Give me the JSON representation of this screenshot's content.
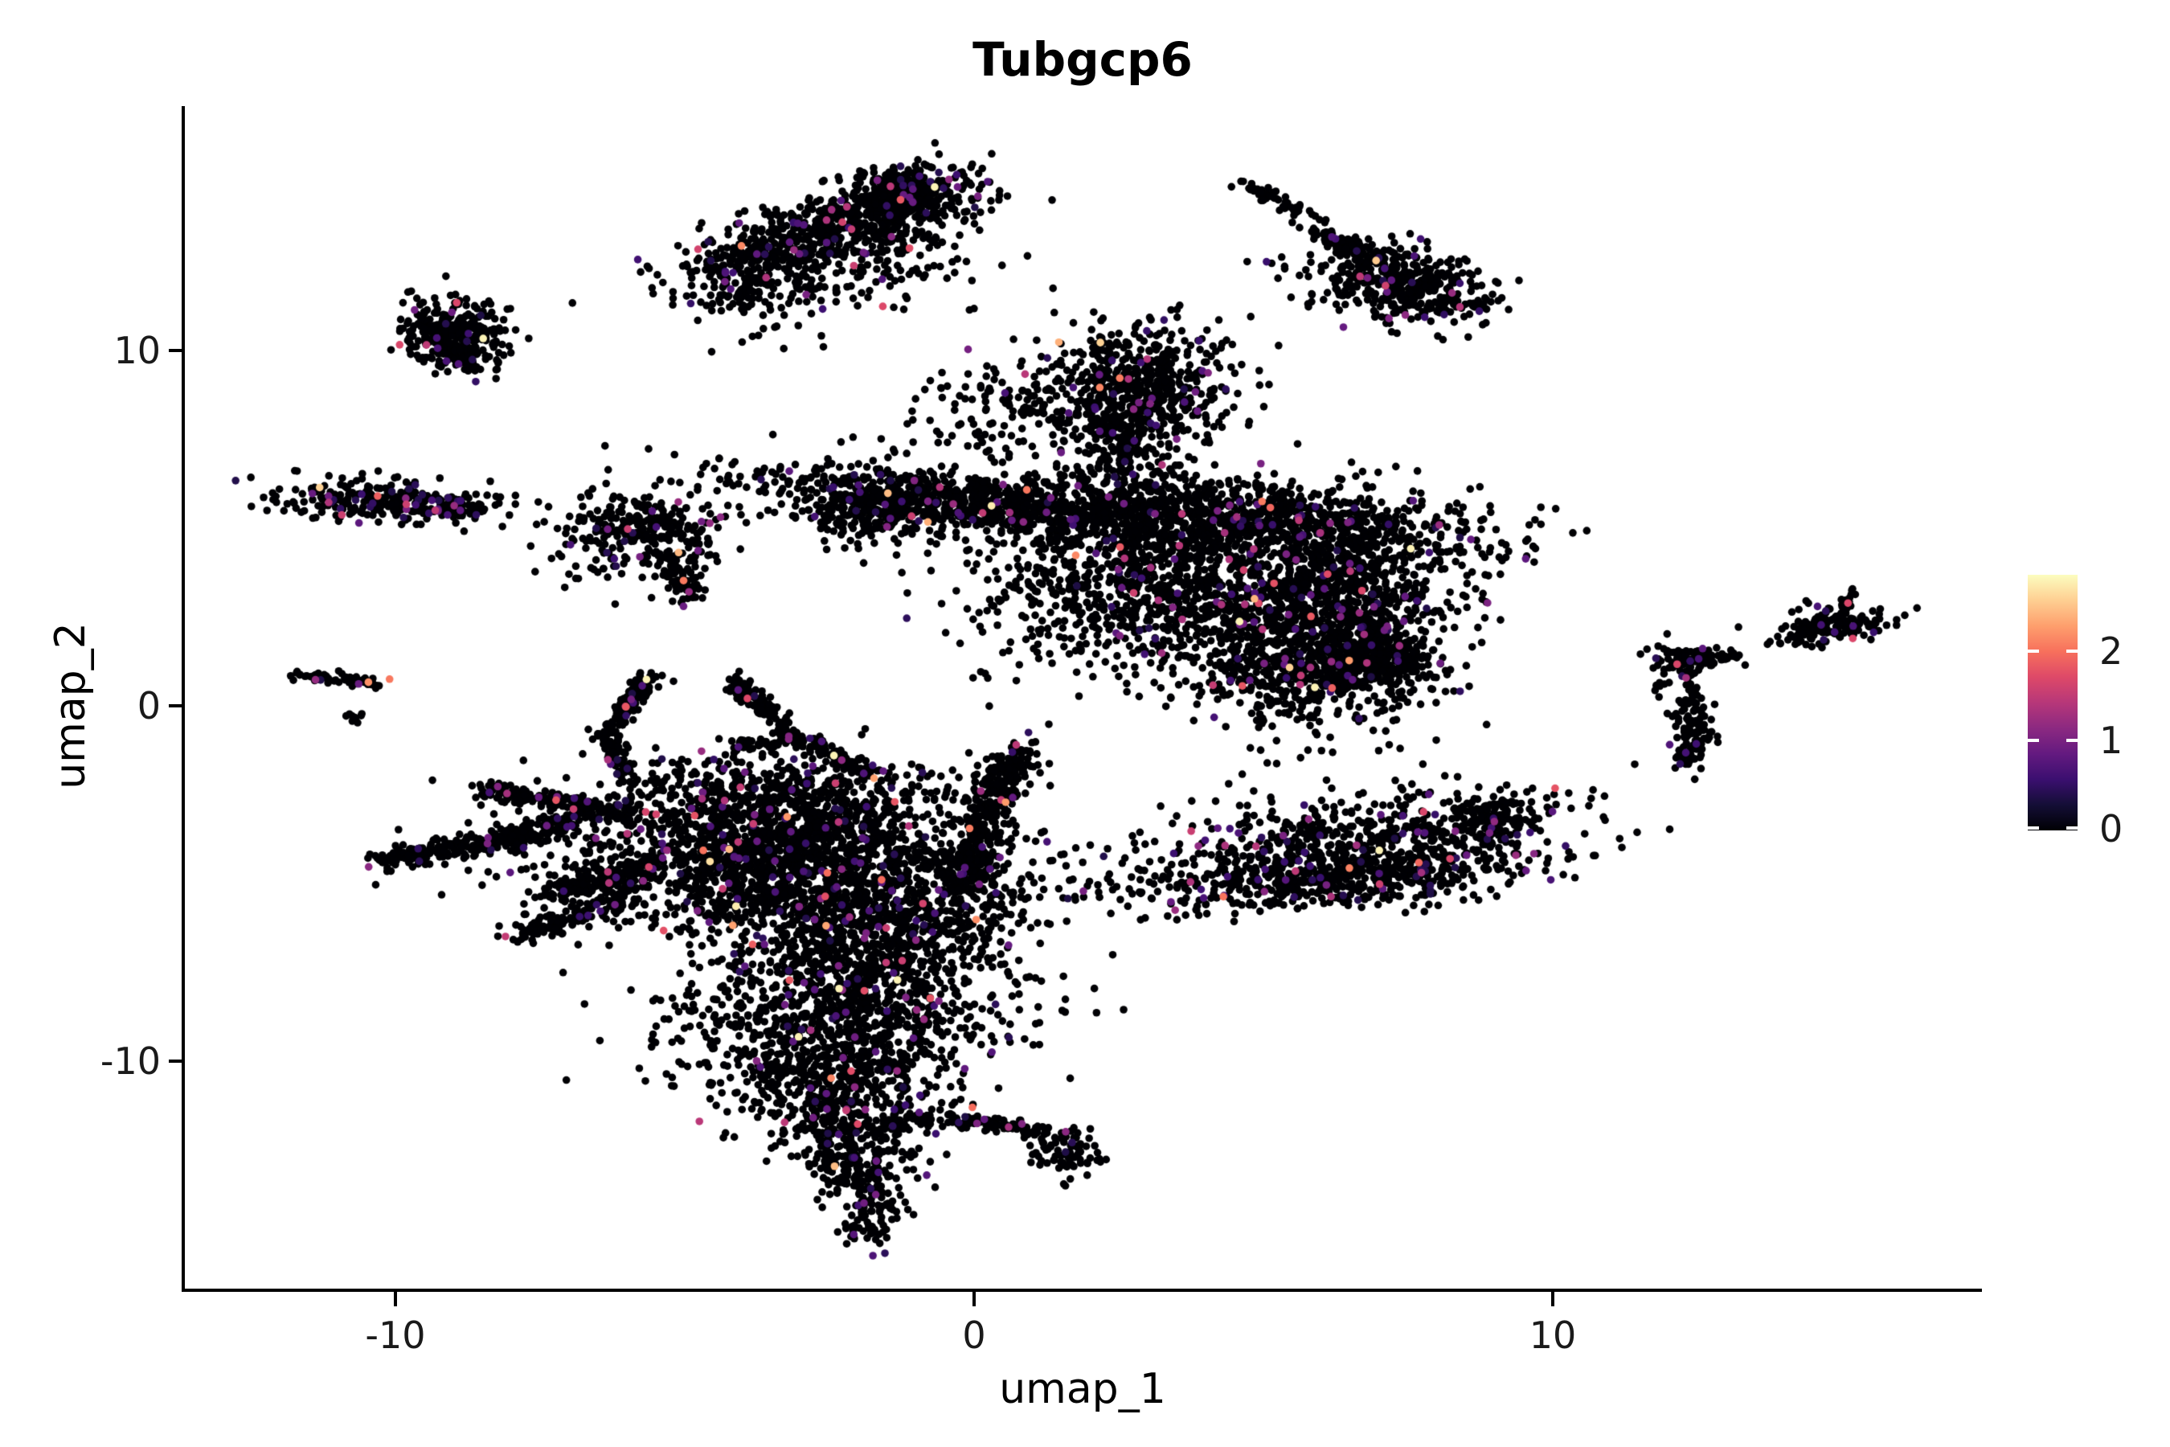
{
  "title": {
    "text": "Tubgcp6"
  },
  "axes": {
    "x": {
      "label": "umap_1",
      "ticks": [
        "-10",
        "0",
        "10"
      ],
      "tick_values": [
        -10,
        0,
        10
      ]
    },
    "y": {
      "label": "umap_2",
      "ticks": [
        "-10",
        "0",
        "10"
      ],
      "tick_values": [
        -10,
        0,
        10
      ]
    }
  },
  "colorbar": {
    "tick_labels": [
      "2",
      "1",
      "0"
    ],
    "tick_values": [
      2,
      1,
      0
    ],
    "vmin": 0,
    "vmax": 2.86,
    "colormap": "magma",
    "gradient_stops": [
      "#000004",
      "#140e36",
      "#3b0f70",
      "#641a80",
      "#8c2981",
      "#b73779",
      "#de4968",
      "#f7705c",
      "#fe9f6d",
      "#fecf92",
      "#fcfdbf"
    ]
  },
  "chart_data": {
    "type": "scatter",
    "title": "Tubgcp6",
    "xlabel": "umap_1",
    "ylabel": "umap_2",
    "xlim": [
      -13.7,
      17.4
    ],
    "ylim": [
      -16.4,
      16.9
    ],
    "x_ticks": [
      -10,
      0,
      10
    ],
    "y_ticks": [
      -10,
      0,
      10
    ],
    "grid": false,
    "legend_position": "right-colorbar",
    "point_color_zero": "#000004",
    "point_radius_px": 4.8,
    "value_range": [
      0,
      2.86
    ],
    "seed": 42,
    "clusters": [
      {
        "kind": "blob",
        "x": -2.6,
        "y": 13.3,
        "rx": 1.45,
        "ry": 0.5,
        "rot": 28,
        "n": 650,
        "cf": 0.06
      },
      {
        "kind": "blob",
        "x": -1.25,
        "y": 14.35,
        "rx": 0.55,
        "ry": 0.4,
        "rot": 20,
        "n": 300,
        "cf": 0.05
      },
      {
        "kind": "blob",
        "x": -2.5,
        "y": 12.2,
        "rx": 1.3,
        "ry": 0.75,
        "rot": 15,
        "n": 200,
        "cf": 0.08
      },
      {
        "kind": "line",
        "pts": [
          [
            -4.25,
            11.2
          ],
          [
            -3.55,
            12.4
          ]
        ],
        "w": 0.25,
        "n": 45,
        "cf": 0.05
      },
      {
        "kind": "blob",
        "x": 5.25,
        "y": 14.2,
        "rx": 0.42,
        "ry": 0.1,
        "rot": -35,
        "n": 50,
        "cf": 0.02
      },
      {
        "kind": "line",
        "pts": [
          [
            5.85,
            13.4
          ],
          [
            7.2,
            12.35
          ]
        ],
        "w": 0.12,
        "n": 120,
        "cf": 0.03
      },
      {
        "kind": "blob",
        "x": 7.55,
        "y": 11.85,
        "rx": 0.75,
        "ry": 0.45,
        "rot": -28,
        "n": 330,
        "cf": 0.04
      },
      {
        "kind": "blob",
        "x": 6.8,
        "y": 12.0,
        "rx": 0.9,
        "ry": 0.55,
        "rot": -25,
        "n": 90,
        "cf": 0.05
      },
      {
        "kind": "blob",
        "x": -9.05,
        "y": 10.6,
        "rx": 0.42,
        "ry": 0.5,
        "rot": 0,
        "n": 230,
        "cf": 0.05
      },
      {
        "kind": "blob",
        "x": -8.7,
        "y": 9.9,
        "rx": 0.3,
        "ry": 0.32,
        "rot": 0,
        "n": 90,
        "cf": 0.05
      },
      {
        "kind": "blob",
        "x": -10.05,
        "y": 5.75,
        "rx": 0.95,
        "ry": 0.3,
        "rot": -6,
        "n": 280,
        "cf": 0.1
      },
      {
        "kind": "line",
        "pts": [
          [
            -9.2,
            5.6
          ],
          [
            -8.55,
            5.5
          ]
        ],
        "w": 0.08,
        "n": 40,
        "cf": 0.04
      },
      {
        "kind": "blob",
        "x": -5.7,
        "y": 4.85,
        "rx": 0.75,
        "ry": 0.6,
        "rot": 0,
        "n": 300,
        "cf": 0.06
      },
      {
        "kind": "line",
        "pts": [
          [
            -5.3,
            4.0
          ],
          [
            -4.85,
            3.0
          ]
        ],
        "w": 0.16,
        "n": 70,
        "cf": 0.06
      },
      {
        "kind": "line",
        "pts": [
          [
            -11.75,
            0.85
          ],
          [
            -10.3,
            0.65
          ]
        ],
        "w": 0.09,
        "n": 65,
        "cf": 0.08
      },
      {
        "kind": "blob",
        "x": -10.75,
        "y": -0.3,
        "rx": 0.12,
        "ry": 0.12,
        "rot": 0,
        "n": 9,
        "cf": 0.1
      },
      {
        "kind": "blob",
        "x": 2.85,
        "y": 8.95,
        "rx": 0.8,
        "ry": 0.95,
        "rot": 0,
        "n": 600,
        "cf": 0.06
      },
      {
        "kind": "blob",
        "x": 0.8,
        "y": 8.3,
        "rx": 1.0,
        "ry": 0.75,
        "rot": 20,
        "n": 150,
        "cf": 0.05
      },
      {
        "kind": "blob",
        "x": 2.5,
        "y": 7.2,
        "rx": 0.4,
        "ry": 0.85,
        "rot": 0,
        "n": 160,
        "cf": 0.05
      },
      {
        "kind": "blob",
        "x": -0.1,
        "y": 5.7,
        "rx": 1.95,
        "ry": 0.42,
        "rot": -10,
        "n": 850,
        "cf": 0.05
      },
      {
        "kind": "blob",
        "x": -1.75,
        "y": 5.45,
        "rx": 0.55,
        "ry": 0.5,
        "rot": 0,
        "n": 180,
        "cf": 0.06
      },
      {
        "kind": "blob",
        "x": 4.6,
        "y": 5.3,
        "rx": 2.1,
        "ry": 0.55,
        "rot": -7,
        "n": 850,
        "cf": 0.05
      },
      {
        "kind": "blob",
        "x": 6.2,
        "y": 2.6,
        "rx": 1.05,
        "ry": 1.6,
        "rot": -8,
        "n": 1250,
        "cf": 0.055
      },
      {
        "kind": "blob",
        "x": 3.6,
        "y": 3.1,
        "rx": 1.5,
        "ry": 1.25,
        "rot": 0,
        "n": 800,
        "cf": 0.055
      },
      {
        "kind": "blob",
        "x": 6.8,
        "y": 1.2,
        "rx": 0.55,
        "ry": 0.4,
        "rot": 0,
        "n": 280,
        "cf": 0.04
      },
      {
        "kind": "blob",
        "x": 1.9,
        "y": 3.9,
        "rx": 1.1,
        "ry": 1.0,
        "rot": 0,
        "n": 250,
        "cf": 0.06
      },
      {
        "kind": "blob",
        "x": 5.0,
        "y": 0.6,
        "rx": 0.8,
        "ry": 0.5,
        "rot": 0,
        "n": 90,
        "cf": 0.05
      },
      {
        "kind": "blob",
        "x": 12.3,
        "y": 1.3,
        "rx": 0.33,
        "ry": 0.22,
        "rot": 0,
        "n": 90,
        "cf": 0.06
      },
      {
        "kind": "blob",
        "x": 12.4,
        "y": -0.75,
        "rx": 0.2,
        "ry": 0.5,
        "rot": 0,
        "n": 100,
        "cf": 0.05
      },
      {
        "kind": "line",
        "pts": [
          [
            12.3,
            1.0
          ],
          [
            12.45,
            -0.2
          ]
        ],
        "w": 0.07,
        "n": 30,
        "cf": 0.03
      },
      {
        "kind": "line",
        "pts": [
          [
            12.6,
            1.2
          ],
          [
            13.25,
            1.5
          ]
        ],
        "w": 0.06,
        "n": 20,
        "cf": 0.05
      },
      {
        "kind": "blob",
        "x": 11.85,
        "y": 0.55,
        "rx": 0.12,
        "ry": 0.1,
        "rot": 0,
        "n": 6,
        "cf": 0
      },
      {
        "kind": "blob",
        "x": 14.85,
        "y": 2.3,
        "rx": 0.5,
        "ry": 0.28,
        "rot": 12,
        "n": 130,
        "cf": 0.05
      },
      {
        "kind": "line",
        "pts": [
          [
            13.95,
            1.9
          ],
          [
            14.45,
            2.15
          ]
        ],
        "w": 0.06,
        "n": 15,
        "cf": 0.05
      },
      {
        "kind": "line",
        "pts": [
          [
            15.05,
            2.65
          ],
          [
            15.15,
            3.25
          ]
        ],
        "w": 0.06,
        "n": 14,
        "cf": 0.03
      },
      {
        "kind": "blob",
        "x": 6.55,
        "y": -4.1,
        "rx": 1.9,
        "ry": 0.75,
        "rot": 9,
        "n": 750,
        "cf": 0.08
      },
      {
        "kind": "blob",
        "x": 6.3,
        "y": -4.9,
        "rx": 1.6,
        "ry": 0.35,
        "rot": 9,
        "n": 350,
        "cf": 0.07
      },
      {
        "kind": "blob",
        "x": 8.9,
        "y": -3.2,
        "rx": 0.45,
        "ry": 0.3,
        "rot": 20,
        "n": 120,
        "cf": 0.07
      },
      {
        "kind": "line",
        "pts": [
          [
            -10.25,
            -4.35
          ],
          [
            -8.6,
            -3.9
          ],
          [
            -6.9,
            -3.35
          ]
        ],
        "w": 0.16,
        "n": 300,
        "cf": 0.04
      },
      {
        "kind": "line",
        "pts": [
          [
            -8.6,
            -2.4
          ],
          [
            -7.2,
            -2.7
          ],
          [
            -5.9,
            -3.15
          ]
        ],
        "w": 0.14,
        "n": 200,
        "cf": 0.05
      },
      {
        "kind": "line",
        "pts": [
          [
            -5.55,
            0.9
          ],
          [
            -6.35,
            -0.8
          ],
          [
            -6.0,
            -2.0
          ]
        ],
        "w": 0.12,
        "n": 190,
        "cf": 0.05
      },
      {
        "kind": "line",
        "pts": [
          [
            -4.25,
            0.85
          ],
          [
            -3.1,
            -0.9
          ],
          [
            -1.7,
            -1.95
          ]
        ],
        "w": 0.12,
        "n": 210,
        "cf": 0.05
      },
      {
        "kind": "line",
        "pts": [
          [
            -4.15,
            -1.05
          ],
          [
            -3.5,
            -1.1
          ]
        ],
        "w": 0.08,
        "n": 40,
        "cf": 0.03
      },
      {
        "kind": "blob",
        "x": -3.3,
        "y": -2.9,
        "rx": 1.5,
        "ry": 0.75,
        "rot": -8,
        "n": 750,
        "cf": 0.05
      },
      {
        "kind": "blob",
        "x": -3.2,
        "y": -4.6,
        "rx": 2.1,
        "ry": 1.05,
        "rot": -5,
        "n": 1500,
        "cf": 0.05
      },
      {
        "kind": "blob",
        "x": -1.7,
        "y": -6.3,
        "rx": 1.15,
        "ry": 0.95,
        "rot": 0,
        "n": 650,
        "cf": 0.055
      },
      {
        "kind": "line",
        "pts": [
          [
            -7.35,
            -5.35
          ],
          [
            -5.6,
            -4.6
          ]
        ],
        "w": 0.2,
        "n": 160,
        "cf": 0.04
      },
      {
        "kind": "line",
        "pts": [
          [
            -7.9,
            -6.55
          ],
          [
            -6.1,
            -5.5
          ]
        ],
        "w": 0.14,
        "n": 110,
        "cf": 0.04
      },
      {
        "kind": "blob",
        "x": -2.3,
        "y": -8.6,
        "rx": 1.55,
        "ry": 0.85,
        "rot": 5,
        "n": 750,
        "cf": 0.055
      },
      {
        "kind": "blob",
        "x": -2.4,
        "y": -10.5,
        "rx": 1.0,
        "ry": 0.8,
        "rot": 5,
        "n": 480,
        "cf": 0.05
      },
      {
        "kind": "blob",
        "x": -2.1,
        "y": -12.2,
        "rx": 0.6,
        "ry": 0.7,
        "rot": 10,
        "n": 260,
        "cf": 0.05
      },
      {
        "kind": "blob",
        "x": -1.85,
        "y": -13.6,
        "rx": 0.32,
        "ry": 0.55,
        "rot": 15,
        "n": 110,
        "cf": 0.04
      },
      {
        "kind": "line",
        "pts": [
          [
            -1.1,
            -11.6
          ],
          [
            0.3,
            -11.75
          ],
          [
            1.35,
            -12.0
          ]
        ],
        "w": 0.1,
        "n": 120,
        "cf": 0.05
      },
      {
        "kind": "blob",
        "x": 1.6,
        "y": -12.6,
        "rx": 0.28,
        "ry": 0.33,
        "rot": 0,
        "n": 90,
        "cf": 0.05
      },
      {
        "kind": "line",
        "pts": [
          [
            0.85,
            -1.2
          ],
          [
            0.1,
            -3.3
          ],
          [
            -0.15,
            -5.2
          ]
        ],
        "w": 0.25,
        "n": 380,
        "cf": 0.05
      },
      {
        "kind": "blob",
        "x": -1.8,
        "y": -14.6,
        "rx": 0.22,
        "ry": 0.4,
        "rot": 0,
        "n": 40,
        "cf": 0.04
      }
    ]
  }
}
